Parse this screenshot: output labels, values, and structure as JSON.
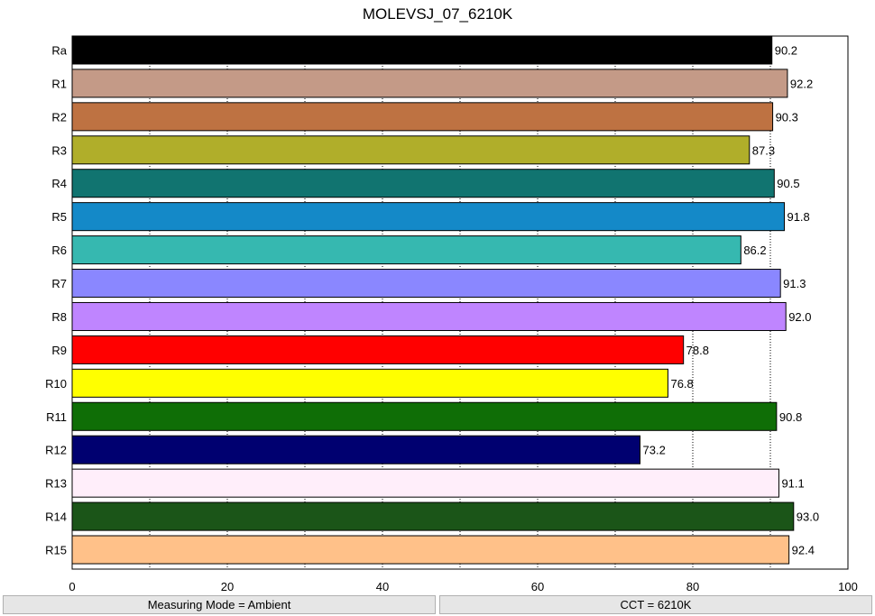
{
  "chart_data": {
    "type": "bar",
    "orientation": "horizontal",
    "title": "MOLEVSJ_07_6210K",
    "xlabel": "",
    "ylabel": "",
    "xlim": [
      0,
      100
    ],
    "x_ticks": [
      0,
      20,
      40,
      60,
      80,
      100
    ],
    "grid": "vertical dotted every 10",
    "categories": [
      "Ra",
      "R1",
      "R2",
      "R3",
      "R4",
      "R5",
      "R6",
      "R7",
      "R8",
      "R9",
      "R10",
      "R11",
      "R12",
      "R13",
      "R14",
      "R15"
    ],
    "values": [
      90.2,
      92.2,
      90.3,
      87.3,
      90.5,
      91.8,
      86.2,
      91.3,
      92.0,
      78.8,
      76.8,
      90.8,
      73.2,
      91.1,
      93.0,
      92.4
    ],
    "value_labels": [
      "90.2",
      "92.2",
      "90.3",
      "87.3",
      "90.5",
      "91.8",
      "86.2",
      "91.3",
      "92.0",
      "78.8",
      "76.8",
      "90.8",
      "73.2",
      "91.1",
      "93.0",
      "92.4"
    ],
    "colors": [
      "#000000",
      "#c49a87",
      "#be7242",
      "#b0ae2a",
      "#117470",
      "#1489c8",
      "#36b8b0",
      "#8a87ff",
      "#bf85ff",
      "#ff0000",
      "#ffff00",
      "#0f6e06",
      "#000070",
      "#ffeefa",
      "#1b5518",
      "#ffc189"
    ]
  },
  "footer": {
    "left": "Measuring Mode = Ambient",
    "right": "CCT = 6210K"
  }
}
